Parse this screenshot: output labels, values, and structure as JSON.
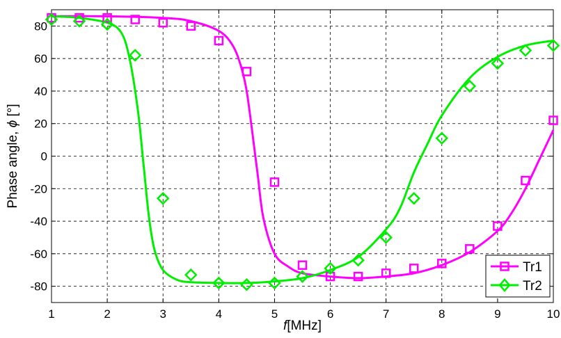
{
  "chart_data": {
    "type": "line",
    "xlabel": "f [MHz]",
    "xlabel_var": "f",
    "xlabel_unit": "[MHz]",
    "ylabel": "Phase angle, ϕ [°]",
    "ylabel_prefix": "Phase angle, ",
    "ylabel_var": "ϕ",
    "ylabel_unit": " [°]",
    "xlim": [
      1,
      10
    ],
    "ylim": [
      -90,
      90
    ],
    "xticks": [
      1,
      2,
      3,
      4,
      5,
      6,
      7,
      8,
      9,
      10
    ],
    "yticks": [
      -80,
      -60,
      -40,
      -20,
      0,
      20,
      40,
      60,
      80
    ],
    "grid": true,
    "legend_position": "bottom-right",
    "series": [
      {
        "name": "Tr1",
        "color": "#ff00ff",
        "marker": "square",
        "markers": {
          "x": [
            1,
            1.5,
            2,
            2.5,
            3,
            3.5,
            4,
            4.5,
            5,
            5.5,
            6,
            6.5,
            7,
            7.5,
            8,
            8.5,
            9,
            9.5,
            10
          ],
          "y": [
            85,
            85,
            85,
            84,
            82,
            80,
            71,
            52,
            -16,
            -67,
            -74,
            -74,
            -72,
            -69,
            -66,
            -57,
            -43,
            -15,
            22
          ]
        },
        "curve": {
          "x": [
            1,
            2,
            3,
            3.5,
            4,
            4.25,
            4.4,
            4.5,
            4.6,
            4.7,
            4.8,
            5,
            5.25,
            5.5,
            6,
            6.5,
            7,
            7.5,
            8,
            8.5,
            9,
            9.25,
            9.5,
            9.75,
            10
          ],
          "y": [
            86,
            86,
            85,
            83,
            77,
            68,
            55,
            40,
            15,
            -12,
            -38,
            -60,
            -68,
            -72,
            -74,
            -75,
            -74,
            -72,
            -67,
            -59,
            -46,
            -35,
            -20,
            -2,
            16
          ]
        }
      },
      {
        "name": "Tr2",
        "color": "#00ee00",
        "marker": "diamond",
        "markers": {
          "x": [
            1,
            1.5,
            2,
            2.5,
            3,
            3.5,
            4,
            4.5,
            5,
            5.5,
            6,
            6.5,
            7,
            7.5,
            8,
            8.5,
            9,
            9.5,
            10
          ],
          "y": [
            84,
            83,
            81,
            62,
            -26,
            -73,
            -78,
            -79,
            -78,
            -74,
            -69,
            -64,
            -50,
            -26,
            11,
            43,
            57,
            65,
            68
          ]
        },
        "curve": {
          "x": [
            1,
            1.5,
            2,
            2.25,
            2.4,
            2.55,
            2.65,
            2.75,
            2.85,
            3,
            3.25,
            3.5,
            4,
            4.5,
            5,
            5.5,
            6,
            6.5,
            7,
            7.25,
            7.5,
            7.75,
            8,
            8.5,
            9,
            9.5,
            10
          ],
          "y": [
            86,
            85,
            82,
            76,
            60,
            28,
            -5,
            -38,
            -58,
            -70,
            -76,
            -77.5,
            -78,
            -78,
            -77,
            -75,
            -70,
            -62,
            -45,
            -32,
            -10,
            8,
            25,
            48,
            61,
            68,
            71
          ]
        }
      }
    ]
  }
}
